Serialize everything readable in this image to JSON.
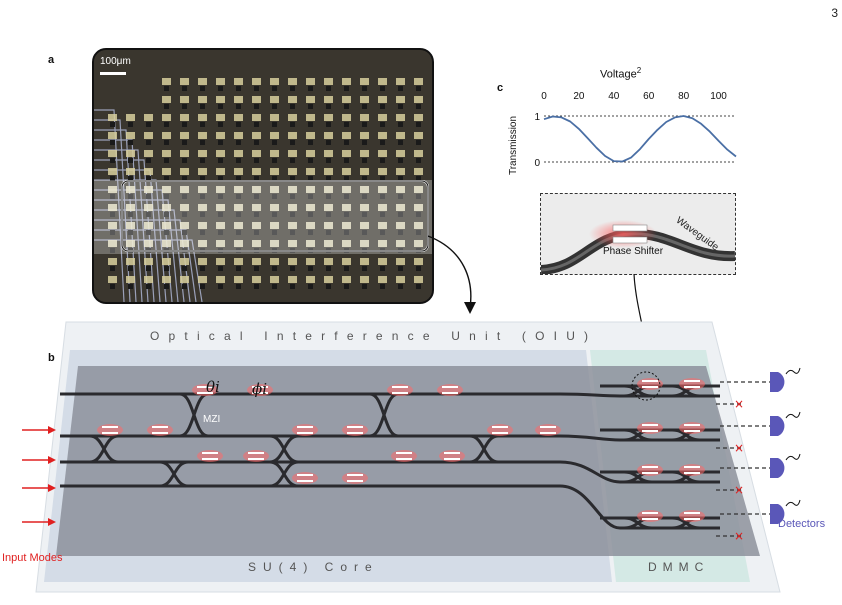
{
  "page_number": "3",
  "panel_a": {
    "label": "a",
    "scale_bar": "100μm"
  },
  "panel_b": {
    "label": "b",
    "oiu_title": "Optical Interference Unit (OIU)",
    "core_label": "SU(4) Core",
    "dmmc_label": "DMMC",
    "theta_label": "θi",
    "phi_label": "ϕi",
    "mzi_label": "MZI",
    "input_label": "Input Modes",
    "detector_label": "Detectors",
    "colors": {
      "input_arrow": "#e02020",
      "detector": "#5a57b8",
      "waveguide": "#2a2a2e",
      "heater": "#ff6a6a"
    }
  },
  "panel_c": {
    "label": "c",
    "title": "Voltage",
    "title_sup": "2",
    "inset_phase_shifter": "Phase Shifter",
    "inset_waveguide": "Waveguide",
    "chart_data": {
      "type": "line",
      "xlabel": "Voltage²",
      "ylabel": "Transmission",
      "x_ticks": [
        "0",
        "20",
        "40",
        "60",
        "80",
        "100"
      ],
      "y_ticks": [
        "0",
        "1"
      ],
      "xlim": [
        0,
        110
      ],
      "ylim": [
        0,
        1
      ],
      "series": [
        {
          "x": [
            0,
            5,
            10,
            15,
            20,
            25,
            30,
            35,
            40,
            45,
            50,
            55,
            60,
            65,
            70,
            75,
            80,
            85,
            90,
            95,
            100,
            105,
            110
          ],
          "values": [
            0.93,
            0.99,
            0.97,
            0.88,
            0.72,
            0.52,
            0.31,
            0.13,
            0.02,
            0.01,
            0.1,
            0.28,
            0.5,
            0.7,
            0.87,
            0.97,
            1.0,
            0.95,
            0.83,
            0.66,
            0.46,
            0.27,
            0.12
          ]
        }
      ]
    }
  }
}
